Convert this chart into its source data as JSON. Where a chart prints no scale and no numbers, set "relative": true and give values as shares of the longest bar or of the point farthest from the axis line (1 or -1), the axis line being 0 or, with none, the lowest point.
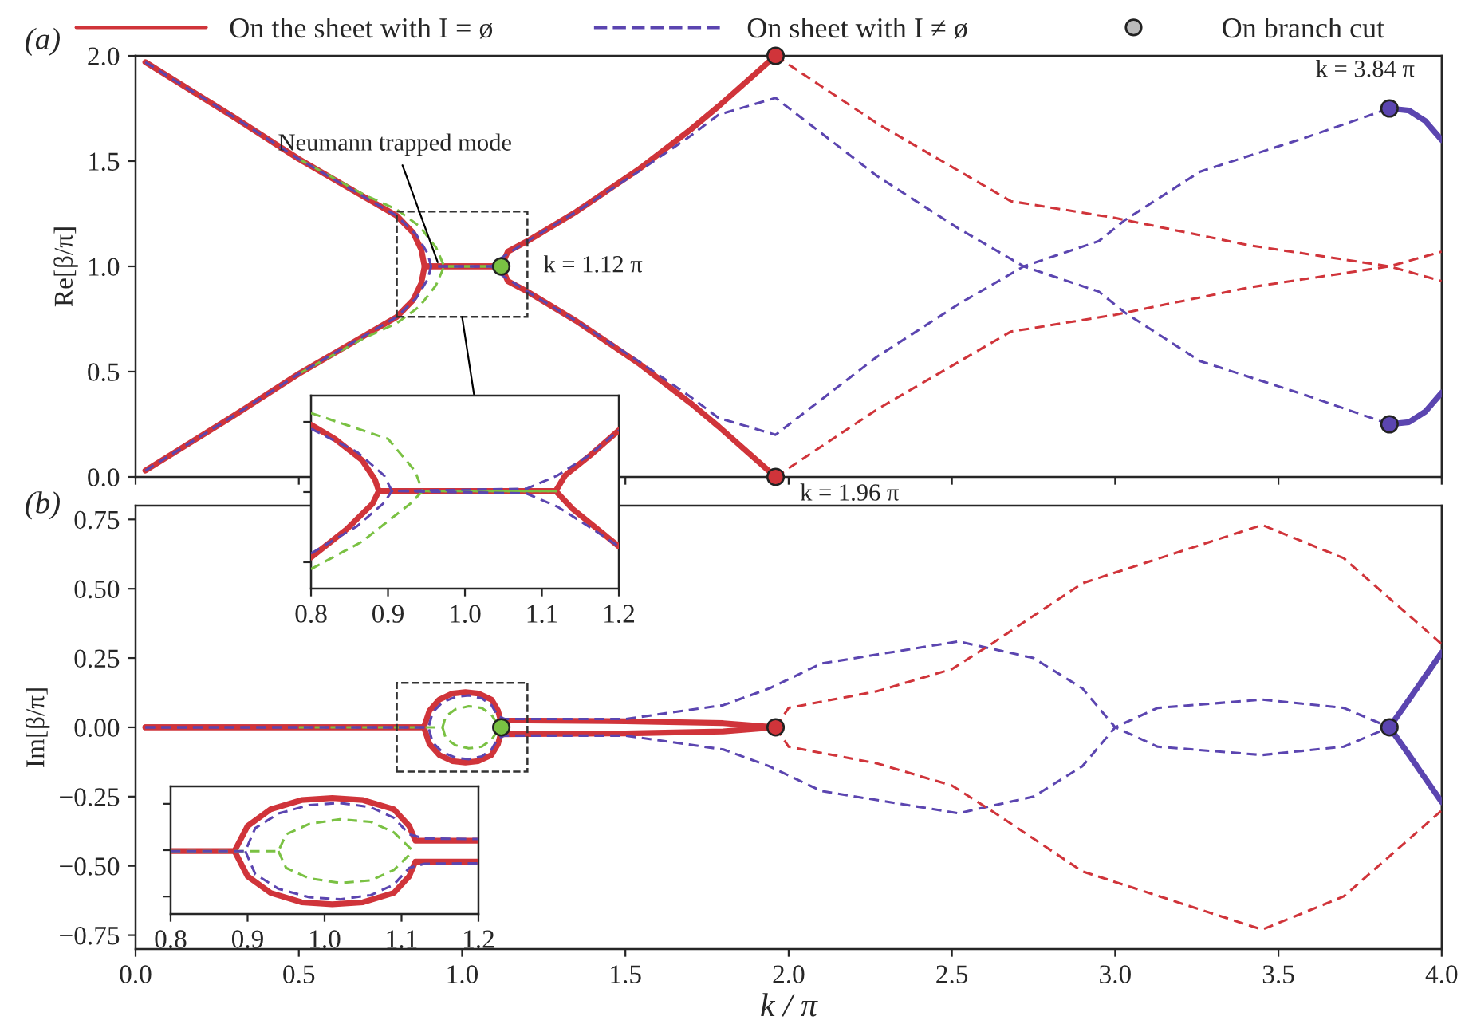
{
  "chart_data": [
    {
      "type": "line",
      "title": "(a)",
      "ylabel": "Re[β/π]",
      "xlim": [
        0.0,
        4.0
      ],
      "ylim": [
        0.0,
        2.0
      ],
      "xticks": [
        0,
        0.5,
        1,
        1.5,
        2,
        2.5,
        3,
        3.5,
        4
      ],
      "yticks": [
        {
          "value": 0,
          "label": "0.0"
        },
        0.5,
        {
          "value": 1,
          "label": "1.0"
        },
        1.5,
        {
          "value": 2,
          "label": "2.0"
        }
      ],
      "tick_labels": "y",
      "legend": "top",
      "annotations": [
        {
          "text": "Neumann trapped mode",
          "x": 0.93,
          "y": 1.0
        },
        {
          "text": "k = 1.12 π",
          "x": 1.12,
          "y": 1.0
        },
        {
          "text": "k = 1.96 π",
          "x": 1.96,
          "y": 0.0
        },
        {
          "text": "k = 3.84 π",
          "x": 3.84,
          "y": 1.75
        }
      ],
      "series": [
        {
          "color": "#7ac143",
          "line_style": "dashed",
          "x": [
            0.5,
            0.7,
            0.8,
            0.87,
            0.92,
            0.945,
            1.12
          ],
          "values": [
            1.51,
            1.34,
            1.27,
            1.19,
            1.09,
            1.0,
            1.0
          ]
        },
        {
          "color": "#7ac143",
          "line_style": "dashed",
          "x": [
            0.5,
            0.7,
            0.8,
            0.87,
            0.92,
            0.945,
            1.12
          ],
          "values": [
            0.49,
            0.66,
            0.73,
            0.81,
            0.91,
            1.0,
            1.0
          ]
        },
        {
          "name": "On the sheet with I = ø",
          "color": "#d0343a",
          "line_style": "solid",
          "x": [
            0.03,
            0.3,
            0.5,
            0.7,
            0.8,
            0.85,
            0.875,
            0.885,
            1.12,
            1.14,
            1.2,
            1.35,
            1.54,
            1.7,
            1.785,
            1.96
          ],
          "values": [
            1.97,
            1.71,
            1.51,
            1.33,
            1.24,
            1.16,
            1.08,
            1.0,
            1.0,
            1.07,
            1.12,
            1.26,
            1.46,
            1.65,
            1.76,
            2.0
          ]
        },
        {
          "name": "On sheet with I ≠ ø",
          "color": "#5b45b0",
          "line_style": "dashed",
          "x": [
            0.03,
            0.3,
            0.5,
            0.7,
            0.8,
            0.86,
            0.895,
            0.905,
            1.09,
            1.12,
            1.2,
            1.35,
            1.54,
            1.7,
            1.785,
            1.96,
            2.27,
            2.52,
            2.72,
            2.95,
            3.03,
            3.26,
            3.58,
            3.84
          ],
          "values": [
            1.97,
            1.71,
            1.51,
            1.33,
            1.24,
            1.15,
            1.06,
            1.0,
            1.0,
            1.04,
            1.12,
            1.26,
            1.45,
            1.62,
            1.72,
            1.8,
            1.43,
            1.18,
            1.0,
            0.88,
            0.78,
            0.55,
            0.39,
            0.25
          ]
        },
        {
          "color": "#5b45b0",
          "line_style": "dashed",
          "x": [
            0.03,
            0.3,
            0.5,
            0.7,
            0.8,
            0.86,
            0.895,
            0.905,
            1.09,
            1.12,
            1.2,
            1.35,
            1.54,
            1.7,
            1.785,
            1.96,
            2.27,
            2.52,
            2.72,
            2.95,
            3.03,
            3.26,
            3.58,
            3.84
          ],
          "values": [
            0.03,
            0.29,
            0.49,
            0.67,
            0.76,
            0.85,
            0.94,
            1.0,
            1.0,
            0.96,
            0.88,
            0.74,
            0.55,
            0.38,
            0.28,
            0.2,
            0.57,
            0.82,
            1.0,
            1.12,
            1.22,
            1.45,
            1.61,
            1.75
          ]
        },
        {
          "color": "#d0343a",
          "line_style": "dashed",
          "x": [
            1.96,
            2.27,
            2.68,
            3.0,
            3.41,
            3.84,
            4.0
          ],
          "values": [
            2.0,
            1.68,
            1.31,
            1.23,
            1.1,
            1.0,
            0.93
          ]
        },
        {
          "color": "#d0343a",
          "line_style": "dashed",
          "x": [
            1.96,
            2.27,
            2.68,
            3.0,
            3.41,
            3.84,
            4.0
          ],
          "values": [
            0.0,
            0.32,
            0.69,
            0.77,
            0.9,
            1.0,
            1.07
          ]
        },
        {
          "color": "#d0343a",
          "line_style": "solid",
          "x": [
            0.03,
            0.3,
            0.5,
            0.7,
            0.8,
            0.85,
            0.875,
            0.885,
            1.12,
            1.14,
            1.2,
            1.35,
            1.54,
            1.7,
            1.785,
            1.96
          ],
          "values": [
            0.03,
            0.29,
            0.49,
            0.67,
            0.76,
            0.84,
            0.92,
            1.0,
            1.0,
            0.93,
            0.88,
            0.74,
            0.54,
            0.35,
            0.24,
            0.0
          ]
        },
        {
          "color": "#5b45b0",
          "line_style": "solid",
          "x": [
            3.84,
            3.9,
            3.95,
            4.0
          ],
          "values": [
            0.25,
            0.26,
            0.31,
            0.4
          ]
        },
        {
          "color": "#5b45b0",
          "line_style": "solid",
          "x": [
            3.84,
            3.9,
            3.95,
            4.0
          ],
          "values": [
            1.75,
            1.74,
            1.69,
            1.6
          ]
        },
        {
          "name": "On branch cut",
          "type": "scatter",
          "marker": "circle",
          "x": [
            1.12,
            1.96,
            1.96,
            3.84,
            3.84
          ],
          "values": [
            1.0,
            2.0,
            0.0,
            1.75,
            0.25
          ],
          "colors": [
            "#7ac143",
            "#d0343a",
            "#d0343a",
            "#5b45b0",
            "#5b45b0"
          ]
        }
      ]
    },
    {
      "type": "line",
      "title": "(b)",
      "xlabel": "k / π",
      "ylabel": "Im[β/π]",
      "xlim": [
        0.0,
        4.0
      ],
      "ylim": [
        -0.8,
        0.8
      ],
      "xticks": [
        {
          "value": 0,
          "label": "0.0"
        },
        0.5,
        {
          "value": 1,
          "label": "1.0"
        },
        1.5,
        {
          "value": 2,
          "label": "2.0"
        },
        2.5,
        {
          "value": 3,
          "label": "3.0"
        },
        3.5,
        {
          "value": 4,
          "label": "4.0"
        }
      ],
      "yticks": [
        {
          "value": 0.75,
          "label": "0.75"
        },
        {
          "value": 0.5,
          "label": "0.50"
        },
        {
          "value": 0.25,
          "label": "0.25"
        },
        {
          "value": 0.0,
          "label": "0.00"
        },
        {
          "value": -0.25,
          "label": "−0.25"
        },
        {
          "value": -0.5,
          "label": "−0.50"
        },
        {
          "value": -0.75,
          "label": "−0.75"
        }
      ],
      "series": [
        {
          "color": "#7ac143",
          "line_style": "dashed",
          "x": [
            0.5,
            0.94,
            0.95,
            0.98,
            1.02,
            1.06,
            1.09,
            1.115
          ],
          "values": [
            0.0,
            0.0,
            0.04,
            0.065,
            0.076,
            0.07,
            0.045,
            0.0
          ]
        },
        {
          "color": "#7ac143",
          "line_style": "dashed",
          "x": [
            0.94,
            0.95,
            0.98,
            1.02,
            1.06,
            1.09,
            1.115
          ],
          "values": [
            0.0,
            -0.04,
            -0.065,
            -0.076,
            -0.07,
            -0.045,
            0.0
          ]
        },
        {
          "color": "#5b45b0",
          "line_style": "dashed",
          "x": [
            0.03,
            0.897,
            0.91,
            0.94,
            0.98,
            1.02,
            1.06,
            1.09,
            1.11,
            1.13,
            1.5,
            1.8,
            1.94,
            2.1,
            2.52,
            2.75,
            2.9,
            3.0,
            3.13,
            3.45,
            3.7,
            3.84
          ],
          "values": [
            0.0,
            0.0,
            0.055,
            0.09,
            0.11,
            0.115,
            0.105,
            0.08,
            0.04,
            0.03,
            0.03,
            0.08,
            0.14,
            0.23,
            0.31,
            0.25,
            0.14,
            0.0,
            -0.07,
            -0.1,
            -0.07,
            0.0
          ]
        },
        {
          "color": "#5b45b0",
          "line_style": "dashed",
          "x": [
            0.03,
            0.897,
            0.91,
            0.94,
            0.98,
            1.02,
            1.06,
            1.09,
            1.11,
            1.13,
            1.5,
            1.8,
            1.94,
            2.1,
            2.52,
            2.75,
            2.9,
            3.0,
            3.13,
            3.45,
            3.7,
            3.84
          ],
          "values": [
            0.0,
            0.0,
            -0.055,
            -0.09,
            -0.11,
            -0.115,
            -0.105,
            -0.08,
            -0.04,
            -0.03,
            -0.03,
            -0.08,
            -0.14,
            -0.23,
            -0.31,
            -0.25,
            -0.14,
            0.0,
            0.07,
            0.1,
            0.07,
            0.0
          ]
        },
        {
          "color": "#d0343a",
          "line_style": "dashed",
          "x": [
            1.96,
            2.0,
            2.27,
            2.5,
            2.62,
            2.9,
            3.45,
            3.7,
            4.0
          ],
          "values": [
            0.0,
            0.07,
            0.13,
            0.21,
            0.3,
            0.52,
            0.73,
            0.61,
            0.3
          ]
        },
        {
          "color": "#d0343a",
          "line_style": "dashed",
          "x": [
            1.96,
            2.0,
            2.27,
            2.5,
            2.62,
            2.9,
            3.45,
            3.7,
            4.0
          ],
          "values": [
            0.0,
            -0.07,
            -0.13,
            -0.21,
            -0.3,
            -0.52,
            -0.73,
            -0.61,
            -0.3
          ]
        },
        {
          "color": "#d0343a",
          "line_style": "solid",
          "x": [
            0.03,
            0.883,
            0.9,
            0.93,
            0.97,
            1.01,
            1.05,
            1.09,
            1.11,
            1.118,
            1.5,
            1.8,
            1.96
          ],
          "values": [
            0.0,
            0.0,
            0.06,
            0.1,
            0.122,
            0.127,
            0.122,
            0.1,
            0.06,
            0.025,
            0.022,
            0.015,
            0.0
          ]
        },
        {
          "color": "#d0343a",
          "line_style": "solid",
          "x": [
            0.03,
            0.883,
            0.9,
            0.93,
            0.97,
            1.01,
            1.05,
            1.09,
            1.11,
            1.118,
            1.5,
            1.8,
            1.96
          ],
          "values": [
            0.0,
            0.0,
            -0.06,
            -0.1,
            -0.122,
            -0.127,
            -0.122,
            -0.1,
            -0.06,
            -0.025,
            -0.022,
            -0.015,
            0.0
          ]
        },
        {
          "color": "#5b45b0",
          "line_style": "solid",
          "x": [
            3.84,
            3.9,
            4.0
          ],
          "values": [
            0.0,
            0.1,
            0.27
          ]
        },
        {
          "color": "#5b45b0",
          "line_style": "solid",
          "x": [
            3.84,
            3.9,
            4.0
          ],
          "values": [
            0.0,
            -0.1,
            -0.27
          ]
        },
        {
          "type": "scatter",
          "marker": "circle",
          "x": [
            1.12,
            1.96,
            3.84
          ],
          "values": [
            0.0,
            0.0,
            0.0
          ],
          "colors": [
            "#7ac143",
            "#d0343a",
            "#5b45b0"
          ]
        }
      ]
    },
    {
      "type": "line",
      "relative": true,
      "xlim": [
        0.8,
        1.2
      ],
      "xticks": [
        0.8,
        0.9,
        {
          "value": 1,
          "label": "1.0"
        },
        1.1,
        1.2
      ],
      "tick_labels": "x",
      "series": [
        {
          "color": "#7ac143",
          "line_style": "dashed",
          "x": [
            0.8,
            0.9,
            0.935,
            0.945,
            1.12
          ],
          "values": [
            1.0,
            0.853,
            0.671,
            0.556,
            0.556
          ]
        },
        {
          "color": "#7ac143",
          "line_style": "dashed",
          "x": [
            0.8,
            0.866,
            0.929,
            0.945,
            1.12
          ],
          "values": [
            0.111,
            0.267,
            0.484,
            0.556,
            0.556
          ]
        },
        {
          "color": "#5b45b0",
          "line_style": "dashed",
          "x": [
            0.8,
            0.86,
            0.895,
            0.905,
            1.08,
            1.12,
            1.16,
            1.2
          ],
          "values": [
            0.911,
            0.778,
            0.644,
            0.556,
            0.569,
            0.644,
            0.756,
            0.902
          ]
        },
        {
          "color": "#5b45b0",
          "line_style": "dashed",
          "x": [
            0.8,
            0.86,
            0.895,
            0.905,
            1.08,
            1.12,
            1.16,
            1.2
          ],
          "values": [
            0.2,
            0.356,
            0.489,
            0.556,
            0.542,
            0.467,
            0.356,
            0.24
          ]
        },
        {
          "color": "#d0343a",
          "line_style": "solid",
          "x": [
            0.8,
            0.831,
            0.866,
            0.883,
            0.888,
            1.118,
            1.13,
            1.163,
            1.2
          ],
          "values": [
            0.933,
            0.853,
            0.733,
            0.622,
            0.556,
            0.556,
            0.644,
            0.76,
            0.902
          ]
        },
        {
          "color": "#d0343a",
          "line_style": "solid",
          "x": [
            0.8,
            0.845,
            0.88,
            0.888,
            1.118,
            1.14,
            1.2
          ],
          "values": [
            0.178,
            0.333,
            0.484,
            0.556,
            0.556,
            0.453,
            0.24
          ]
        }
      ]
    },
    {
      "type": "line",
      "relative": true,
      "xlim": [
        0.8,
        1.2
      ],
      "xticks": [
        0.8,
        0.9,
        {
          "value": 1,
          "label": "1.0"
        },
        1.1,
        1.2
      ],
      "tick_labels": "x",
      "series": [
        {
          "color": "#7ac143",
          "line_style": "dashed",
          "x": [
            0.8,
            0.94,
            0.95,
            0.98,
            1.02,
            1.06,
            1.09,
            1.115
          ],
          "values": [
            0.542,
            0.542,
            0.686,
            0.776,
            0.816,
            0.794,
            0.704,
            0.542
          ]
        },
        {
          "color": "#7ac143",
          "line_style": "dashed",
          "x": [
            0.94,
            0.95,
            0.98,
            1.02,
            1.06,
            1.09,
            1.115
          ],
          "values": [
            0.542,
            0.397,
            0.307,
            0.267,
            0.289,
            0.379,
            0.542
          ]
        },
        {
          "color": "#5b45b0",
          "line_style": "dashed",
          "x": [
            0.8,
            0.897,
            0.91,
            0.94,
            0.98,
            1.02,
            1.06,
            1.09,
            1.11,
            1.13,
            1.2
          ],
          "values": [
            0.542,
            0.542,
            0.74,
            0.866,
            0.939,
            0.957,
            0.921,
            0.83,
            0.686,
            0.65,
            0.646
          ]
        },
        {
          "color": "#5b45b0",
          "line_style": "dashed",
          "x": [
            0.897,
            0.91,
            0.94,
            0.98,
            1.02,
            1.06,
            1.09,
            1.11,
            1.13,
            1.2
          ],
          "values": [
            0.542,
            0.343,
            0.217,
            0.144,
            0.126,
            0.162,
            0.253,
            0.397,
            0.433,
            0.437
          ]
        },
        {
          "color": "#d0343a",
          "line_style": "solid",
          "x": [
            0.8,
            0.883,
            0.9,
            0.93,
            0.97,
            1.01,
            1.05,
            1.09,
            1.11,
            1.118,
            1.2
          ],
          "values": [
            0.542,
            0.542,
            0.758,
            0.903,
            0.982,
            1.0,
            0.982,
            0.903,
            0.758,
            0.632,
            0.632
          ]
        },
        {
          "color": "#d0343a",
          "line_style": "solid",
          "x": [
            0.883,
            0.9,
            0.93,
            0.97,
            1.01,
            1.05,
            1.09,
            1.11,
            1.118,
            1.2
          ],
          "values": [
            0.542,
            0.325,
            0.181,
            0.101,
            0.083,
            0.101,
            0.181,
            0.325,
            0.451,
            0.451
          ]
        }
      ]
    }
  ]
}
